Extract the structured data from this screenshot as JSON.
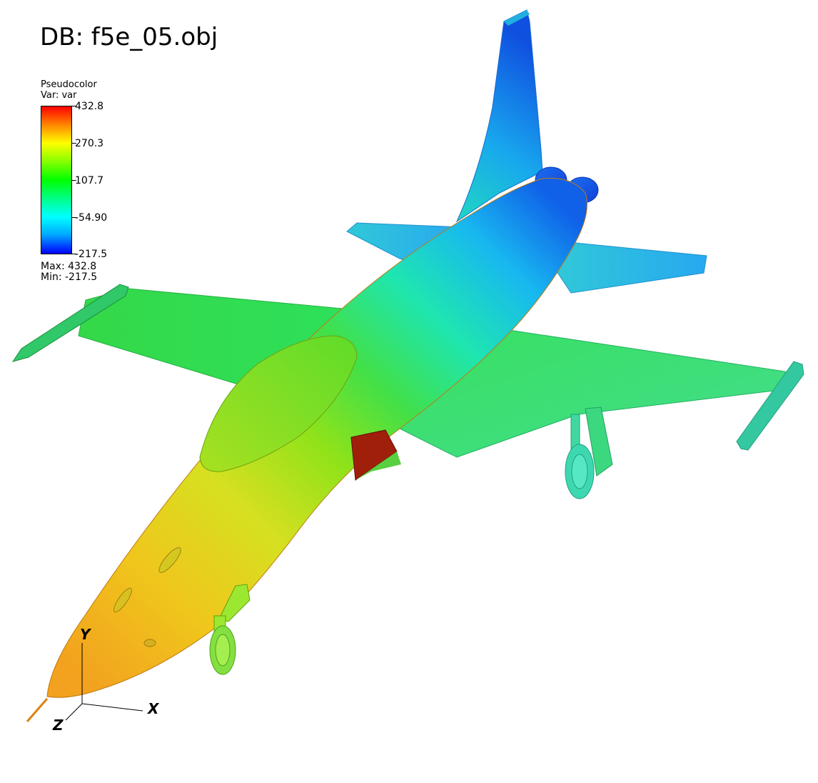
{
  "db_title": "DB: f5e_05.obj",
  "legend": {
    "plot_type": "Pseudocolor",
    "var_label": "Var: var",
    "ticks": [
      "432.8",
      "270.3",
      "107.7",
      "-54.90",
      "-217.5"
    ],
    "max_label": "Max:  432.8",
    "min_label": "Min: -217.5",
    "colormap": [
      "#0000ff",
      "#00ffff",
      "#00ff00",
      "#ffff00",
      "#ff0000"
    ]
  },
  "axes": {
    "x": "X",
    "y": "Y",
    "z": "Z"
  },
  "model": {
    "name": "F-5E aircraft mesh",
    "scalar_max": 432.8,
    "scalar_min": -217.5
  }
}
